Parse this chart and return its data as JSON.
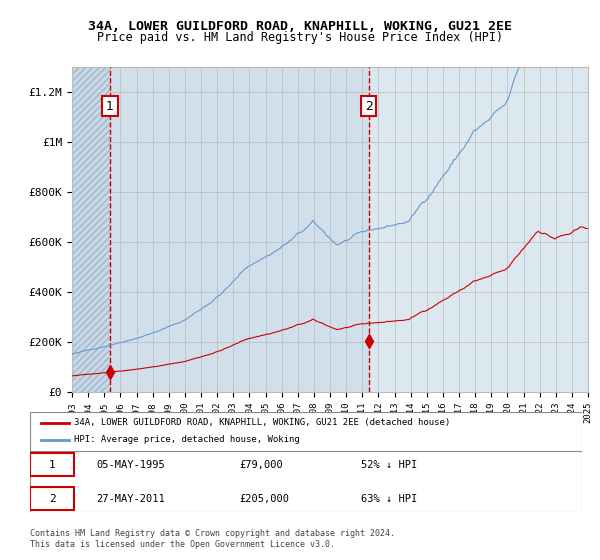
{
  "title": "34A, LOWER GUILDFORD ROAD, KNAPHILL, WOKING, GU21 2EE",
  "subtitle": "Price paid vs. HM Land Registry's House Price Index (HPI)",
  "legend_red": "34A, LOWER GUILDFORD ROAD, KNAPHILL, WOKING, GU21 2EE (detached house)",
  "legend_blue": "HPI: Average price, detached house, Woking",
  "annotation1_label": "1",
  "annotation1_date": "05-MAY-1995",
  "annotation1_price": "£79,000",
  "annotation1_hpi": "52% ↓ HPI",
  "annotation2_label": "2",
  "annotation2_date": "27-MAY-2011",
  "annotation2_price": "£205,000",
  "annotation2_hpi": "63% ↓ HPI",
  "footnote1": "Contains HM Land Registry data © Crown copyright and database right 2024.",
  "footnote2": "This data is licensed under the Open Government Licence v3.0.",
  "hatch_color": "#c8d8e8",
  "bg_color": "#dce8f0",
  "red_color": "#cc0000",
  "blue_color": "#6699cc",
  "grid_color": "#bbbbbb",
  "sale1_year": 1995.35,
  "sale1_value": 79000,
  "sale2_year": 2011.4,
  "sale2_value": 205000,
  "ylim_max": 1300000,
  "yticks": [
    0,
    200000,
    400000,
    600000,
    800000,
    1000000,
    1200000
  ],
  "ytick_labels": [
    "£0",
    "£200K",
    "£400K",
    "£600K",
    "£800K",
    "£1M",
    "£1.2M"
  ],
  "xstart": 1993,
  "xend": 2025
}
